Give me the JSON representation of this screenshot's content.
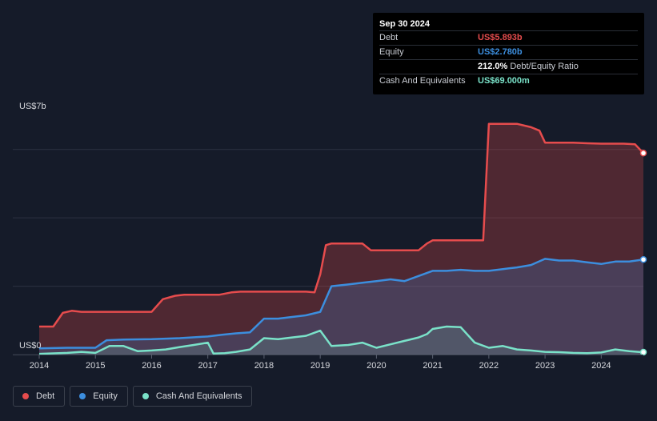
{
  "tooltip": {
    "date": "Sep 30 2024",
    "rows": [
      {
        "label": "Debt",
        "value": "US$5.893b",
        "color": "#e64c4d"
      },
      {
        "label": "Equity",
        "value": "US$2.780b",
        "color": "#3c8ede"
      },
      {
        "label": "",
        "value": "212.0%",
        "sub": "Debt/Equity Ratio",
        "color": "#ffffff"
      },
      {
        "label": "Cash And Equivalents",
        "value": "US$69.000m",
        "color": "#7ae2c9"
      }
    ]
  },
  "legend": [
    {
      "label": "Debt",
      "color": "#e64c4d"
    },
    {
      "label": "Equity",
      "color": "#3c8ede"
    },
    {
      "label": "Cash And Equivalents",
      "color": "#7ae2c9"
    }
  ],
  "chart_data": {
    "type": "area",
    "xlabel": "",
    "ylabel": "",
    "y_top_label": "US$7b",
    "y_bottom_label": "US$0",
    "ylim": [
      0,
      7
    ],
    "xlim": [
      2014.0,
      2024.75
    ],
    "x_ticks": [
      "2014",
      "2015",
      "2016",
      "2017",
      "2018",
      "2019",
      "2020",
      "2021",
      "2022",
      "2023",
      "2024"
    ],
    "grid": true,
    "legend_position": "bottom-left",
    "series": [
      {
        "name": "Debt",
        "color": "#e64c4d",
        "x": [
          2014.0,
          2014.25,
          2014.42,
          2014.58,
          2014.75,
          2015.0,
          2015.25,
          2015.5,
          2015.75,
          2016.0,
          2016.2,
          2016.42,
          2016.58,
          2016.75,
          2017.0,
          2017.2,
          2017.42,
          2017.58,
          2017.75,
          2018.0,
          2018.25,
          2018.5,
          2018.75,
          2018.9,
          2019.0,
          2019.1,
          2019.2,
          2019.4,
          2019.75,
          2019.9,
          2020.0,
          2020.25,
          2020.5,
          2020.75,
          2020.9,
          2021.0,
          2021.25,
          2021.5,
          2021.75,
          2021.9,
          2022.0,
          2022.25,
          2022.5,
          2022.75,
          2022.9,
          2023.0,
          2023.2,
          2023.5,
          2023.75,
          2024.0,
          2024.25,
          2024.4,
          2024.6,
          2024.75
        ],
        "values": [
          0.82,
          0.82,
          1.22,
          1.28,
          1.25,
          1.25,
          1.25,
          1.25,
          1.25,
          1.25,
          1.62,
          1.72,
          1.75,
          1.75,
          1.75,
          1.75,
          1.82,
          1.84,
          1.84,
          1.84,
          1.84,
          1.84,
          1.84,
          1.82,
          2.35,
          3.2,
          3.25,
          3.25,
          3.25,
          3.05,
          3.05,
          3.05,
          3.05,
          3.05,
          3.25,
          3.34,
          3.34,
          3.34,
          3.34,
          3.34,
          6.75,
          6.75,
          6.75,
          6.65,
          6.55,
          6.2,
          6.2,
          6.2,
          6.18,
          6.17,
          6.17,
          6.17,
          6.15,
          5.893
        ]
      },
      {
        "name": "Equity",
        "color": "#3c8ede",
        "x": [
          2014.0,
          2014.5,
          2015.0,
          2015.2,
          2015.5,
          2016.0,
          2016.5,
          2017.0,
          2017.25,
          2017.5,
          2017.75,
          2018.0,
          2018.25,
          2018.5,
          2018.75,
          2019.0,
          2019.2,
          2019.5,
          2019.75,
          2020.0,
          2020.25,
          2020.5,
          2020.75,
          2021.0,
          2021.25,
          2021.5,
          2021.75,
          2022.0,
          2022.25,
          2022.5,
          2022.75,
          2023.0,
          2023.25,
          2023.5,
          2023.75,
          2024.0,
          2024.25,
          2024.5,
          2024.75
        ],
        "values": [
          0.18,
          0.2,
          0.2,
          0.42,
          0.44,
          0.45,
          0.48,
          0.53,
          0.58,
          0.62,
          0.65,
          1.05,
          1.05,
          1.1,
          1.15,
          1.25,
          2.0,
          2.05,
          2.1,
          2.15,
          2.2,
          2.15,
          2.3,
          2.45,
          2.45,
          2.48,
          2.45,
          2.45,
          2.5,
          2.55,
          2.62,
          2.8,
          2.75,
          2.75,
          2.7,
          2.65,
          2.72,
          2.72,
          2.78
        ]
      },
      {
        "name": "Cash And Equivalents",
        "color": "#7ae2c9",
        "x": [
          2014.0,
          2014.5,
          2014.75,
          2015.0,
          2015.25,
          2015.5,
          2015.75,
          2016.0,
          2016.25,
          2016.5,
          2016.75,
          2017.0,
          2017.1,
          2017.3,
          2017.5,
          2017.75,
          2018.0,
          2018.25,
          2018.5,
          2018.75,
          2019.0,
          2019.2,
          2019.5,
          2019.75,
          2020.0,
          2020.25,
          2020.5,
          2020.75,
          2020.9,
          2021.0,
          2021.25,
          2021.5,
          2021.75,
          2022.0,
          2022.25,
          2022.5,
          2022.75,
          2023.0,
          2023.25,
          2023.5,
          2023.75,
          2024.0,
          2024.25,
          2024.5,
          2024.75
        ],
        "values": [
          0.02,
          0.05,
          0.08,
          0.05,
          0.25,
          0.25,
          0.1,
          0.12,
          0.15,
          0.22,
          0.28,
          0.35,
          0.03,
          0.04,
          0.08,
          0.15,
          0.48,
          0.45,
          0.5,
          0.55,
          0.7,
          0.25,
          0.28,
          0.35,
          0.2,
          0.3,
          0.4,
          0.5,
          0.6,
          0.75,
          0.82,
          0.8,
          0.35,
          0.2,
          0.25,
          0.15,
          0.12,
          0.08,
          0.07,
          0.05,
          0.04,
          0.06,
          0.15,
          0.1,
          0.069
        ]
      }
    ]
  }
}
